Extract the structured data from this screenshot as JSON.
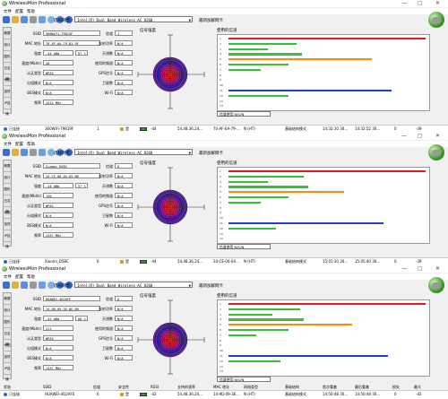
{
  "app": {
    "title": "WirelessMon Professional",
    "menu": [
      "文件",
      "配置",
      "帮助"
    ],
    "adapter_label": "选择网卡",
    "adapter_value": "Intel(R) Dual Band Wireless-AC 8260",
    "latest_label": "最新加解网卡",
    "labels": {
      "ssid": "SSID",
      "channel": "信道",
      "mac": "MAC 地址",
      "tx_power": "发射功率",
      "rssi": "强度",
      "antennas": "天线数",
      "speed": "速度(Mbits)",
      "used_channels": "使用的频道",
      "auth": "认证类型",
      "gps": "GPS信号",
      "cipher": "分组模式",
      "satellites": "卫星数",
      "infra": "BSS模式",
      "wifi_type": "Wi-Fi",
      "frequency": "频率",
      "signal_strength": "信号强度",
      "channels_used": "使用的信道",
      "usage_select": "信道使用 B/G/N"
    },
    "side_tabs": [
      "概要",
      "统计",
      "图形",
      "白名单",
      "地图",
      "选项",
      "IP连接"
    ],
    "colors": {
      "red": "#e31a1c",
      "green": "#33c233",
      "orange": "#ff8c00",
      "blue": "#1f3fd0",
      "accent": "#1f6fd0"
    }
  },
  "windows": [
    {
      "top": 0,
      "ssid": "360WiFi-79819F",
      "channel": "1",
      "mac": "70-AF-6A-79-81-9F",
      "tx_power": "N/A",
      "rssi": "-44 dBm",
      "rssi_pct": "57 %",
      "antennas": "N/A",
      "speed": "20",
      "used_channels": "N/A",
      "auth": "WPA2",
      "gps": "N/A",
      "cipher": "N/A",
      "satellites": "N/A",
      "infra": "N/A",
      "wifi_type": "N/A",
      "frequency": "2412 MHz",
      "net_row": {
        "status": "已连接",
        "ssid": "360WiFi-79819F",
        "ch": "1",
        "lock": "是",
        "rssi": "-44",
        "rates": "54,48,36,24...",
        "mac": "70-AF-6A-79-...",
        "mode": "N (HT)",
        "infra": "基础结构模式",
        "first": "14:32:10 30...",
        "last": "14:32:52 30...",
        "pct": "0",
        "max": "-39"
      },
      "bars": [
        {
          "color": "red",
          "len": 0.99,
          "row": 0
        },
        {
          "color": "green",
          "len": 0.34,
          "row": 1
        },
        {
          "color": "green",
          "len": 0.2,
          "row": 2
        },
        {
          "color": "green",
          "len": 0.37,
          "row": 3
        },
        {
          "color": "orange",
          "len": 0.72,
          "row": 4
        },
        {
          "color": "green",
          "len": 0.3,
          "row": 5
        },
        {
          "color": "green",
          "len": 0.16,
          "row": 6
        },
        {
          "color": "blue",
          "len": 0.82,
          "row": 10
        },
        {
          "color": "green",
          "len": 0.3,
          "row": 11
        }
      ],
      "header": null
    },
    {
      "top": 148,
      "ssid": "Xiaomi_D5BC",
      "channel": "6",
      "mac": "34-CE-00-04-D5-BD",
      "tx_power": "N/A",
      "rssi": "-44 dBm",
      "rssi_pct": "57 %",
      "antennas": "N/A",
      "speed": "130",
      "used_channels": "N/A",
      "auth": "WPA2",
      "gps": "N/A",
      "cipher": "N/A",
      "satellites": "N/A",
      "infra": "N/A",
      "wifi_type": "N/A",
      "frequency": "2437 MHz",
      "net_row": {
        "status": "已连接",
        "ssid": "Xiaomi_D5BC",
        "ch": "6",
        "lock": "是",
        "rssi": "-44",
        "rates": "54,48,36,24...",
        "mac": "34-CE-00-04...",
        "mode": "N (HT)",
        "infra": "基础结构模式",
        "first": "15:01:30 30...",
        "last": "15:05:40 30...",
        "pct": "0",
        "max": "-39"
      },
      "bars": [
        {
          "color": "red",
          "len": 0.99,
          "row": 0
        },
        {
          "color": "green",
          "len": 0.38,
          "row": 1
        },
        {
          "color": "green",
          "len": 0.2,
          "row": 2
        },
        {
          "color": "green",
          "len": 0.4,
          "row": 3
        },
        {
          "color": "orange",
          "len": 0.58,
          "row": 4
        },
        {
          "color": "green",
          "len": 0.3,
          "row": 5
        },
        {
          "color": "green",
          "len": 0.16,
          "row": 6
        },
        {
          "color": "blue",
          "len": 0.78,
          "row": 10
        },
        {
          "color": "green",
          "len": 0.24,
          "row": 11
        }
      ],
      "header": null
    },
    {
      "top": 296,
      "ssid": "HUAWEI-4Q2AFE",
      "channel": "6",
      "mac": "14-9D-09-3E-0E-B0",
      "tx_power": "N/A",
      "rssi": "-42 dBm",
      "rssi_pct": "60 %",
      "antennas": "N/A",
      "speed": "211",
      "used_channels": "N/A",
      "auth": "WPA2",
      "gps": "N/A",
      "cipher": "N/A",
      "satellites": "N/A",
      "infra": "N/A",
      "wifi_type": "N/A",
      "frequency": "2437 MHz",
      "net_row": {
        "status": "已连接",
        "ssid": "HUAWEI-4Q2AFE",
        "ch": "6",
        "lock": "是",
        "rssi": "-42",
        "rates": "54,48,36,24...",
        "mac": "14-9D-09-3E...",
        "mode": "N (HT)",
        "infra": "基础结构模式",
        "first": "14:50:48 30...",
        "last": "14:50:48 30...",
        "pct": "0",
        "max": "-42"
      },
      "bars": [
        {
          "color": "red",
          "len": 0.99,
          "row": 0
        },
        {
          "color": "green",
          "len": 0.36,
          "row": 1
        },
        {
          "color": "green",
          "len": 0.22,
          "row": 2
        },
        {
          "color": "green",
          "len": 0.38,
          "row": 3
        },
        {
          "color": "orange",
          "len": 0.62,
          "row": 4
        },
        {
          "color": "green",
          "len": 0.3,
          "row": 5
        },
        {
          "color": "green",
          "len": 0.14,
          "row": 6
        },
        {
          "color": "blue",
          "len": 0.8,
          "row": 10
        },
        {
          "color": "green",
          "len": 0.26,
          "row": 11
        }
      ],
      "header": [
        "状态",
        "SSID",
        "信道",
        "安全性",
        "RSSI",
        "支持的速率",
        "MAC 地址",
        "网络类型",
        "基础结构",
        "首次看着",
        "最后看着",
        "损失",
        "最大"
      ]
    }
  ]
}
